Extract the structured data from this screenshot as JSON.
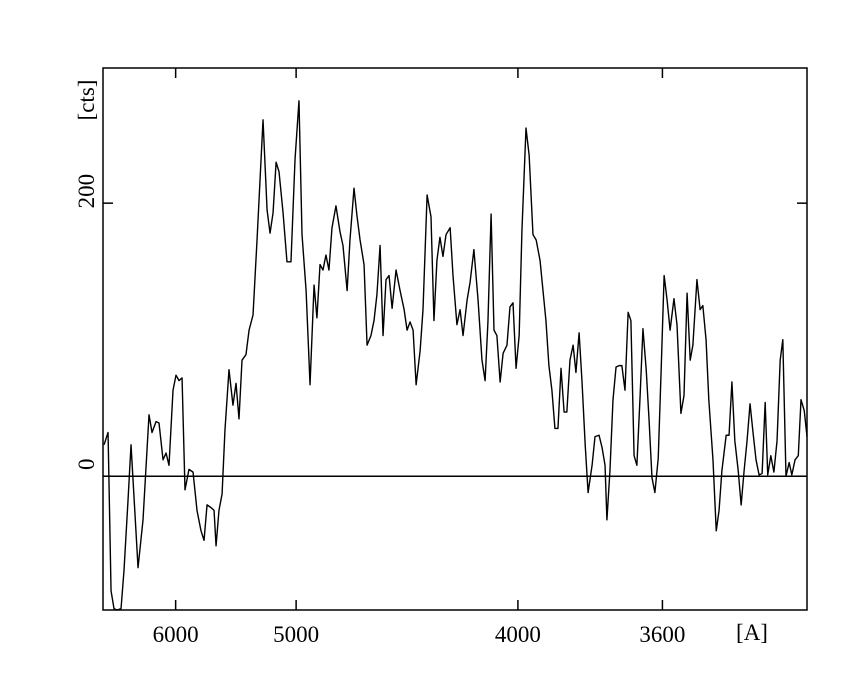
{
  "chart_data": {
    "type": "line",
    "xlabel": "[A]",
    "ylabel": "[cts]",
    "color": "#000000",
    "xscale": "inverse-square",
    "xlim": [
      7000,
      3300
    ],
    "xticks": [
      6000,
      5000,
      4000,
      3600
    ],
    "ylim": [
      -98,
      299
    ],
    "yticks": [
      0,
      200
    ],
    "zero_line": true,
    "x": [
      6982,
      6914,
      6864,
      6816,
      6768,
      6706,
      6661,
      6602,
      6558,
      6460,
      6393,
      6315,
      6277,
      6227,
      6191,
      6143,
      6108,
      6074,
      6029,
      5996,
      5963,
      5931,
      5900,
      5859,
      5818,
      5779,
      5740,
      5711,
      5683,
      5646,
      5619,
      5601,
      5575,
      5548,
      5523,
      5489,
      5456,
      5431,
      5407,
      5383,
      5352,
      5328,
      5298,
      5268,
      5224,
      5195,
      5174,
      5153,
      5132,
      5112,
      5085,
      5059,
      5033,
      5007,
      4982,
      4963,
      4938,
      4914,
      4890,
      4873,
      4855,
      4838,
      4821,
      4804,
      4787,
      4765,
      4743,
      4727,
      4705,
      4690,
      4669,
      4654,
      4638,
      4618,
      4603,
      4584,
      4569,
      4555,
      4540,
      4526,
      4512,
      4498,
      4484,
      4466,
      4448,
      4430,
      4417,
      4404,
      4391,
      4378,
      4361,
      4349,
      4332,
      4316,
      4304,
      4292,
      4280,
      4268,
      4256,
      4240,
      4229,
      4214,
      4202,
      4191,
      4176,
      4165,
      4151,
      4136,
      4122,
      4111,
      4101,
      4090,
      4080,
      4070,
      4059,
      4049,
      4036,
      4026,
      4016,
      4006,
      3996,
      3987,
      3974,
      3964,
      3952,
      3942,
      3930,
      3921,
      3912,
      3903,
      3894,
      3885,
      3876,
      3867,
      3858,
      3850,
      3841,
      3832,
      3824,
      3815,
      3807,
      3798,
      3790,
      3779,
      3771,
      3760,
      3752,
      3744,
      3739,
      3731,
      3723,
      3715,
      3707,
      3700,
      3692,
      3684,
      3677,
      3669,
      3662,
      3654,
      3647,
      3639,
      3632,
      3625,
      3618,
      3610,
      3603,
      3596,
      3589,
      3582,
      3573,
      3566,
      3557,
      3550,
      3543,
      3536,
      3530,
      3521,
      3514,
      3508,
      3501,
      3495,
      3486,
      3479,
      3473,
      3467,
      3458,
      3452,
      3446,
      3440,
      3433,
      3427,
      3421,
      3415,
      3409,
      3403,
      3397,
      3391,
      3385,
      3379,
      3374,
      3368,
      3362,
      3356,
      3350,
      3345,
      3339,
      3333,
      3328,
      3322,
      3316,
      3311,
      3305,
      3300
    ],
    "values": [
      23,
      32,
      -84,
      -97,
      -98,
      -97,
      -69,
      -18,
      23,
      -67,
      -32,
      45,
      32,
      40,
      39,
      12,
      17,
      8,
      63,
      74,
      70,
      72,
      -10,
      5,
      3,
      -25,
      -40,
      -47,
      -21,
      -23,
      -25,
      -51,
      -25,
      -13,
      34,
      78,
      52,
      68,
      42,
      85,
      89,
      107,
      118,
      173,
      261,
      195,
      178,
      193,
      230,
      223,
      193,
      157,
      157,
      232,
      275,
      177,
      136,
      67,
      140,
      116,
      155,
      151,
      162,
      151,
      182,
      198,
      179,
      169,
      136,
      173,
      211,
      191,
      173,
      155,
      96,
      103,
      114,
      133,
      169,
      103,
      144,
      147,
      123,
      151,
      136,
      122,
      107,
      113,
      107,
      67,
      92,
      122,
      206,
      190,
      114,
      158,
      175,
      161,
      177,
      182,
      147,
      111,
      122,
      103,
      129,
      142,
      166,
      129,
      85,
      70,
      113,
      192,
      107,
      103,
      69,
      90,
      96,
      124,
      127,
      79,
      103,
      180,
      255,
      235,
      177,
      173,
      158,
      136,
      114,
      81,
      63,
      35,
      35,
      79,
      47,
      47,
      85,
      96,
      76,
      105,
      70,
      23,
      -12,
      8,
      29,
      30,
      21,
      8,
      -32,
      4,
      56,
      80,
      81,
      81,
      63,
      120,
      114,
      15,
      8,
      59,
      108,
      78,
      41,
      -1,
      -12,
      13,
      78,
      147,
      129,
      107,
      130,
      111,
      46,
      59,
      134,
      85,
      96,
      144,
      122,
      125,
      100,
      56,
      12,
      -40,
      -25,
      4,
      30,
      30,
      69,
      26,
      4,
      -21,
      4,
      26,
      53,
      32,
      12,
      1,
      2,
      54,
      1,
      15,
      3,
      26,
      85,
      100,
      0,
      10,
      1,
      12,
      15,
      56,
      48,
      29
    ]
  }
}
